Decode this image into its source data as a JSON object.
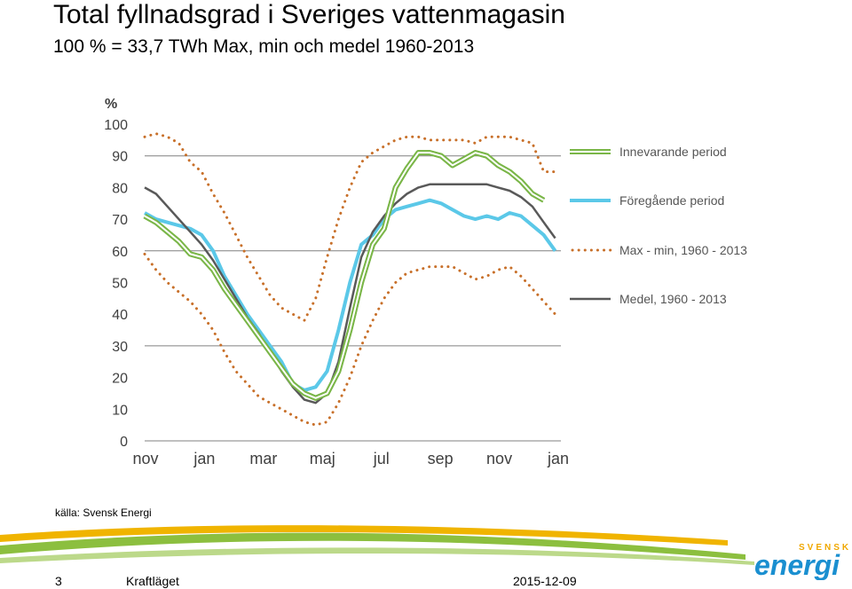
{
  "header": {
    "title": "Total fyllnadsgrad i Sveriges vattenmagasin",
    "subtitle": "100 % = 33,7 TWh  Max, min och medel 1960-2013"
  },
  "footer": {
    "source": "källa: Svensk Energi",
    "page_number": "3",
    "label": "Kraftläget",
    "date": "2015-12-09"
  },
  "logo": {
    "top_text": "SVENSK",
    "main_text": "energi"
  },
  "colors": {
    "current": "#7ab648",
    "previous": "#5bc8e8",
    "maxmin": "#c8702a",
    "mean": "#595959",
    "grid": "#808080",
    "brand_green": "#8cbf3f",
    "brand_orange": "#f0a800",
    "brand_blue": "#1a8fd0"
  },
  "chart_data": {
    "type": "line",
    "title": "",
    "ylabel": "%",
    "xlabel": "",
    "ylim": [
      0,
      100
    ],
    "yticks": [
      0,
      10,
      20,
      30,
      40,
      50,
      60,
      70,
      80,
      90,
      100
    ],
    "xticks": [
      "nov",
      "jan",
      "mar",
      "maj",
      "jul",
      "sep",
      "nov",
      "jan"
    ],
    "xrange_weeks": [
      0,
      73
    ],
    "legend": [
      "Innevarande period",
      "Föregående period",
      "Max - min, 1960 - 2013",
      "Medel, 1960 - 2013"
    ],
    "series": [
      {
        "name": "Innevarande period",
        "style": "double-line",
        "x": [
          0,
          2,
          4,
          6,
          8,
          10,
          12,
          14,
          16,
          18,
          20,
          22,
          24,
          26,
          28,
          30,
          32,
          34,
          36,
          38,
          40,
          42,
          44,
          46,
          48,
          50,
          52,
          54,
          56,
          58,
          60,
          62,
          64,
          66,
          68,
          70
        ],
        "values": [
          71,
          69,
          66,
          63,
          59,
          58,
          54,
          48,
          43,
          38,
          33,
          28,
          23,
          18,
          15,
          13.5,
          15,
          22,
          35,
          50,
          62,
          67,
          80,
          86,
          91,
          91,
          90,
          87,
          89,
          91,
          90,
          87,
          85,
          82,
          78,
          76
        ]
      },
      {
        "name": "Föregående period",
        "style": "solid",
        "x": [
          0,
          2,
          4,
          6,
          8,
          10,
          12,
          14,
          16,
          18,
          20,
          22,
          24,
          26,
          28,
          30,
          32,
          34,
          36,
          38,
          40,
          42,
          44,
          46,
          48,
          50,
          52,
          54,
          56,
          58,
          60,
          62,
          64,
          66,
          68,
          70,
          72
        ],
        "values": [
          72,
          70,
          69,
          68,
          67,
          65,
          60,
          52,
          46,
          40,
          35,
          30,
          25,
          18,
          16,
          17,
          22,
          35,
          50,
          62,
          65,
          70,
          73,
          74,
          75,
          76,
          75,
          73,
          71,
          70,
          71,
          70,
          72,
          71,
          68,
          65,
          60
        ]
      },
      {
        "name": "Max",
        "style": "dotted",
        "x": [
          0,
          2,
          4,
          6,
          8,
          10,
          12,
          14,
          16,
          18,
          20,
          22,
          24,
          26,
          28,
          30,
          32,
          34,
          36,
          38,
          40,
          42,
          44,
          46,
          48,
          50,
          52,
          54,
          56,
          58,
          60,
          62,
          64,
          66,
          68,
          70,
          72
        ],
        "values": [
          96,
          97,
          96,
          94,
          88,
          85,
          78,
          72,
          65,
          58,
          52,
          46,
          42,
          40,
          38,
          45,
          58,
          70,
          80,
          88,
          91,
          93,
          95,
          96,
          96,
          95,
          95,
          95,
          95,
          94,
          96,
          96,
          96,
          95,
          94,
          85,
          85
        ]
      },
      {
        "name": "Min",
        "style": "dotted",
        "x": [
          0,
          2,
          4,
          6,
          8,
          10,
          12,
          14,
          16,
          18,
          20,
          22,
          24,
          26,
          28,
          30,
          32,
          34,
          36,
          38,
          40,
          42,
          44,
          46,
          48,
          50,
          52,
          54,
          56,
          58,
          60,
          62,
          64,
          66,
          68,
          70,
          72
        ],
        "values": [
          59,
          54,
          50,
          47,
          44,
          40,
          35,
          28,
          22,
          18,
          14,
          12,
          10,
          8,
          6,
          5,
          6,
          12,
          20,
          30,
          38,
          45,
          50,
          53,
          54,
          55,
          55,
          55,
          53,
          51,
          52,
          54,
          55,
          52,
          48,
          44,
          40
        ]
      },
      {
        "name": "Medel, 1960 - 2013",
        "style": "solid",
        "x": [
          0,
          2,
          4,
          6,
          8,
          10,
          12,
          14,
          16,
          18,
          20,
          22,
          24,
          26,
          28,
          30,
          32,
          34,
          36,
          38,
          40,
          42,
          44,
          46,
          48,
          50,
          52,
          54,
          56,
          58,
          60,
          62,
          64,
          66,
          68,
          70,
          72
        ],
        "values": [
          80,
          78,
          74,
          70,
          66,
          62,
          57,
          51,
          45,
          39,
          34,
          28,
          22,
          17,
          13,
          12,
          15,
          25,
          42,
          58,
          66,
          71,
          75,
          78,
          80,
          81,
          81,
          81,
          81,
          81,
          81,
          80,
          79,
          77,
          74,
          69,
          64
        ]
      }
    ]
  }
}
